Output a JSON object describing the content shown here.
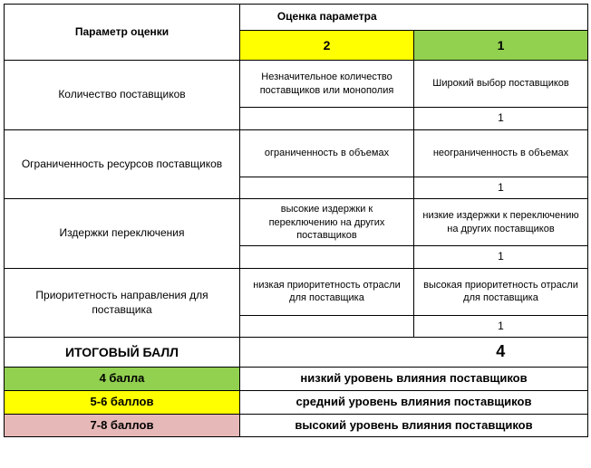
{
  "header": {
    "param_label": "Параметр оценки",
    "score_label": "Оценка параметра",
    "score_2": "2",
    "score_1": "1"
  },
  "rows": [
    {
      "label": "Количество поставщиков",
      "desc_2": "Незначительное количество поставщиков или монополия",
      "desc_1": "Широкий выбор поставщиков",
      "val_2": "",
      "val_1": "1"
    },
    {
      "label": "Ограниченность ресурсов поставщиков",
      "desc_2": "ограниченность в объемах",
      "desc_1": "неограниченность в объемах",
      "val_2": "",
      "val_1": "1"
    },
    {
      "label": "Издержки переключения",
      "desc_2": "высокие издержки к переключению на других поставщиков",
      "desc_1": "низкие издержки к переключению на других поставщиков",
      "val_2": "",
      "val_1": "1"
    },
    {
      "label": "Приоритетность направления для поставщика",
      "desc_2": "низкая приоритетность отрасли для поставщика",
      "desc_1": "высокая приоритетность отрасли для поставщика",
      "val_2": "",
      "val_1": "1"
    }
  ],
  "total": {
    "label": "ИТОГОВЫЙ БАЛЛ",
    "value": "4"
  },
  "summary": [
    {
      "label": "4 балла",
      "text": "низкий уровень влияния поставщиков",
      "color": "green"
    },
    {
      "label": "5-6 баллов",
      "text": "средний уровень влияния поставщиков",
      "color": "yellow"
    },
    {
      "label": "7-8 баллов",
      "text": "высокий уровень влияния поставщиков",
      "color": "pink"
    }
  ],
  "colors": {
    "yellow": "#ffff00",
    "green": "#92d050",
    "pink": "#e6b8b7",
    "border": "#000000",
    "bg": "#ffffff"
  }
}
